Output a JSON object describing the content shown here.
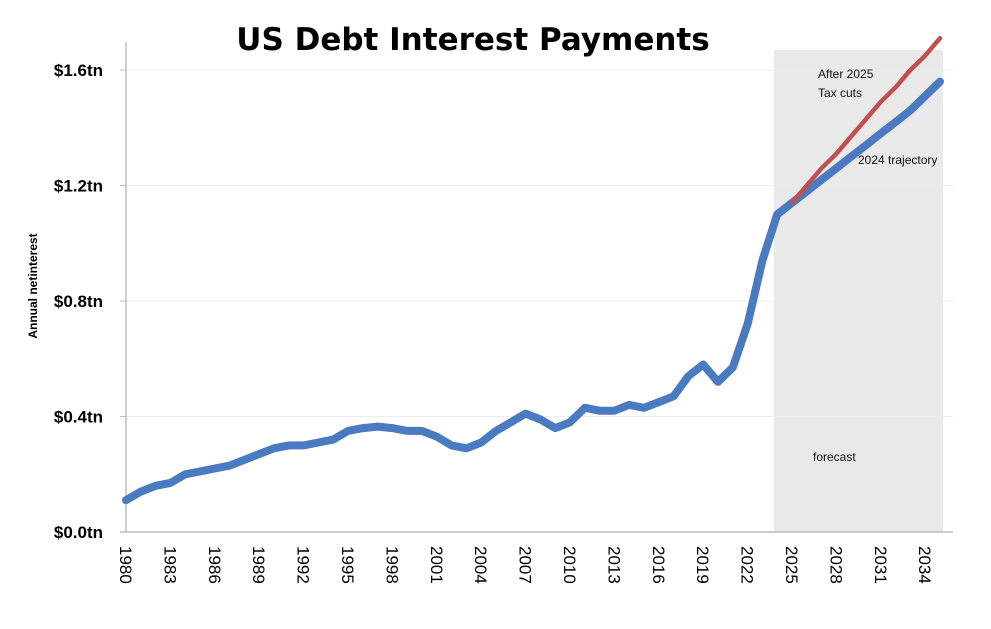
{
  "chart_data": {
    "type": "line",
    "title": "US Debt Interest Payments",
    "xlabel": "",
    "ylabel": "Annual netinterest",
    "ylim": [
      0,
      1.6
    ],
    "yticks": [
      {
        "value": 0.0,
        "label": "$0.0tn"
      },
      {
        "value": 0.4,
        "label": "$0.4tn"
      },
      {
        "value": 0.8,
        "label": "$0.8tn"
      },
      {
        "value": 1.2,
        "label": "$1.2tn"
      },
      {
        "value": 1.6,
        "label": "$1.6tn"
      }
    ],
    "xlim": [
      1980,
      2035
    ],
    "xticks": [
      "1980",
      "1983",
      "1986",
      "1989",
      "1992",
      "1995",
      "1998",
      "2001",
      "2004",
      "2007",
      "2010",
      "2013",
      "2016",
      "2019",
      "2022",
      "2025",
      "2028",
      "2031",
      "2034"
    ],
    "grid": true,
    "forecast_region": {
      "start": 2024.2,
      "end": 2035.6,
      "label": "forecast"
    },
    "series": [
      {
        "name": "2024 trajectory",
        "color": "#4a7ac0",
        "x": [
          1980,
          1981,
          1982,
          1983,
          1984,
          1985,
          1986,
          1987,
          1988,
          1989,
          1990,
          1991,
          1992,
          1993,
          1994,
          1995,
          1996,
          1997,
          1998,
          1999,
          2000,
          2001,
          2002,
          2003,
          2004,
          2005,
          2006,
          2007,
          2008,
          2009,
          2010,
          2011,
          2012,
          2013,
          2014,
          2015,
          2016,
          2017,
          2018,
          2019,
          2020,
          2021,
          2022,
          2023,
          2024,
          2025,
          2026,
          2027,
          2028,
          2029,
          2030,
          2031,
          2032,
          2033,
          2034,
          2035
        ],
        "values": [
          0.11,
          0.14,
          0.16,
          0.17,
          0.2,
          0.21,
          0.22,
          0.23,
          0.25,
          0.27,
          0.29,
          0.3,
          0.3,
          0.31,
          0.32,
          0.35,
          0.36,
          0.365,
          0.36,
          0.35,
          0.35,
          0.33,
          0.3,
          0.29,
          0.31,
          0.35,
          0.38,
          0.41,
          0.39,
          0.36,
          0.38,
          0.43,
          0.42,
          0.42,
          0.44,
          0.43,
          0.45,
          0.47,
          0.54,
          0.58,
          0.52,
          0.57,
          0.72,
          0.94,
          1.1,
          1.14,
          1.18,
          1.22,
          1.26,
          1.3,
          1.34,
          1.38,
          1.42,
          1.46,
          1.51,
          1.56
        ]
      },
      {
        "name": "After 2025 Tax cuts",
        "color": "#c0504d",
        "x": [
          2025,
          2026,
          2027,
          2028,
          2029,
          2030,
          2031,
          2032,
          2033,
          2034,
          2035
        ],
        "values": [
          1.14,
          1.2,
          1.26,
          1.31,
          1.37,
          1.43,
          1.49,
          1.54,
          1.6,
          1.65,
          1.71
        ]
      }
    ],
    "annotations": [
      {
        "text": "After 2025",
        "x": 2026.8,
        "y": 1.58
      },
      {
        "text": "Tax cuts",
        "x": 2026.8,
        "y": 1.52
      },
      {
        "text": "2024 trajectory",
        "x": 2029.3,
        "y": 1.28
      },
      {
        "text": "forecast",
        "x": 2026.8,
        "y": 0.25
      }
    ]
  },
  "labels": {
    "title": "US Debt Interest Payments",
    "ylabel": "Annual netinterest",
    "annot_after_1": "After 2025",
    "annot_after_2": "Tax cuts",
    "annot_trajectory": "2024 trajectory",
    "annot_forecast": "forecast"
  }
}
